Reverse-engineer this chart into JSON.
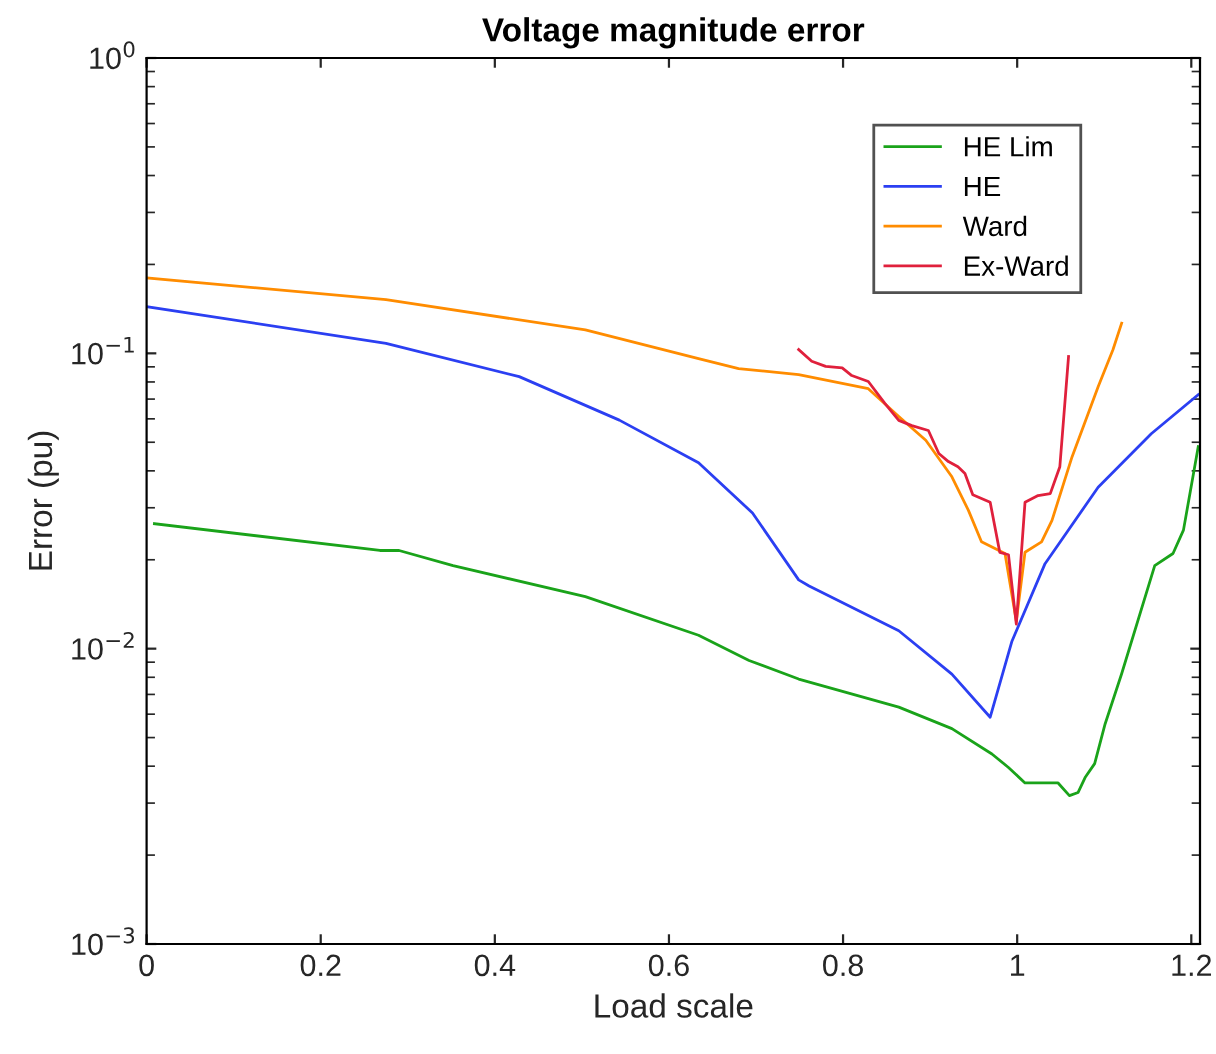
{
  "chart_data": {
    "type": "line",
    "title": "Voltage magnitude error",
    "xlabel": "Load scale",
    "ylabel": "Error (pu)",
    "log": "y",
    "grid": false,
    "legend": "top right",
    "xlim": [
      0,
      1.21
    ],
    "xticks": [
      0,
      0.2,
      0.4,
      0.6,
      0.8,
      1,
      1.2
    ],
    "ylim": [
      0.001,
      1
    ],
    "yticks": [
      {
        "value": 0.001,
        "label": "10$^{−3}$"
      },
      {
        "value": 0.01,
        "label": "10$^{−2}$"
      },
      {
        "value": 0.1,
        "label": "10$^{−1}$"
      },
      {
        "value": 1,
        "label": "10$^{0}$"
      }
    ],
    "series": [
      {
        "name": "HE Lim",
        "color": "#1aa31a",
        "x": [
          0.009,
          0.268,
          0.29,
          0.352,
          0.504,
          0.634,
          0.692,
          0.749,
          0.864,
          0.925,
          0.971,
          0.99,
          1.009,
          1.047,
          1.06,
          1.07,
          1.078,
          1.089,
          1.101,
          1.12,
          1.158,
          1.179,
          1.191,
          1.208
        ],
        "values": [
          0.0265,
          0.0215,
          0.0215,
          0.0191,
          0.015,
          0.0111,
          0.00912,
          0.00789,
          0.00634,
          0.00536,
          0.0044,
          0.00396,
          0.00351,
          0.00351,
          0.00318,
          0.00326,
          0.00366,
          0.00408,
          0.00556,
          0.00822,
          0.0191,
          0.021,
          0.0252,
          0.0483
        ]
      },
      {
        "name": "HE",
        "color": "#2b3ff2",
        "x": [
          0,
          0.275,
          0.428,
          0.543,
          0.634,
          0.696,
          0.749,
          0.761,
          0.864,
          0.925,
          0.969,
          0.994,
          1.032,
          1.093,
          1.154,
          1.208
        ],
        "values": [
          0.144,
          0.108,
          0.0834,
          0.0594,
          0.0426,
          0.0288,
          0.0171,
          0.0163,
          0.0115,
          0.0082,
          0.00586,
          0.0106,
          0.0194,
          0.0352,
          0.0534,
          0.0724
        ]
      },
      {
        "name": "Ward",
        "color": "#ff8c00",
        "x": [
          0,
          0.275,
          0.504,
          0.634,
          0.68,
          0.749,
          0.829,
          0.864,
          0.895,
          0.925,
          0.944,
          0.959,
          0.986,
          0.999,
          1.009,
          1.028,
          1.04,
          1.063,
          1.093,
          1.11,
          1.12
        ],
        "values": [
          0.18,
          0.152,
          0.12,
          0.096,
          0.0888,
          0.0847,
          0.0759,
          0.0611,
          0.0508,
          0.0382,
          0.0294,
          0.023,
          0.021,
          0.0124,
          0.0212,
          0.023,
          0.0272,
          0.0446,
          0.0771,
          0.1028,
          0.1265
        ]
      },
      {
        "name": "Ex-Ward",
        "color": "#e0203c",
        "x": [
          0.749,
          0.764,
          0.78,
          0.799,
          0.81,
          0.829,
          0.848,
          0.864,
          0.879,
          0.898,
          0.91,
          0.921,
          0.932,
          0.94,
          0.949,
          0.969,
          0.98,
          0.99,
          0.999,
          1.009,
          1.024,
          1.038,
          1.049,
          1.059
        ],
        "values": [
          0.103,
          0.094,
          0.0903,
          0.0893,
          0.0841,
          0.0803,
          0.0677,
          0.0593,
          0.0569,
          0.0548,
          0.0458,
          0.043,
          0.0413,
          0.0392,
          0.0332,
          0.0313,
          0.0212,
          0.0208,
          0.0121,
          0.0313,
          0.033,
          0.0335,
          0.0413,
          0.0975
        ]
      }
    ]
  }
}
